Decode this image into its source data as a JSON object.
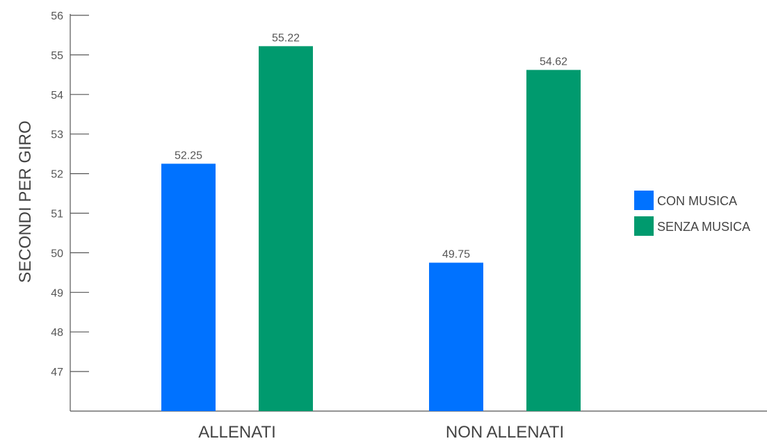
{
  "chart_data": {
    "type": "bar",
    "title": "",
    "xlabel": "",
    "ylabel": "SECONDI PER GIRO",
    "categories": [
      "ALLENATI",
      "NON ALLENATI"
    ],
    "series": [
      {
        "name": "CON MUSICA",
        "values": [
          52.25,
          49.75
        ],
        "color": "#0072FF"
      },
      {
        "name": "SENZA MUSICA",
        "values": [
          55.22,
          54.62
        ],
        "color": "#009A6E"
      }
    ],
    "data_labels": [
      [
        "52.25",
        "49.75"
      ],
      [
        "55.22",
        "54.62"
      ]
    ],
    "ylim": [
      46,
      56
    ],
    "yticks": [
      47,
      48,
      49,
      50,
      51,
      52,
      53,
      54,
      55,
      56
    ],
    "grid": false,
    "legend_position": "right"
  }
}
